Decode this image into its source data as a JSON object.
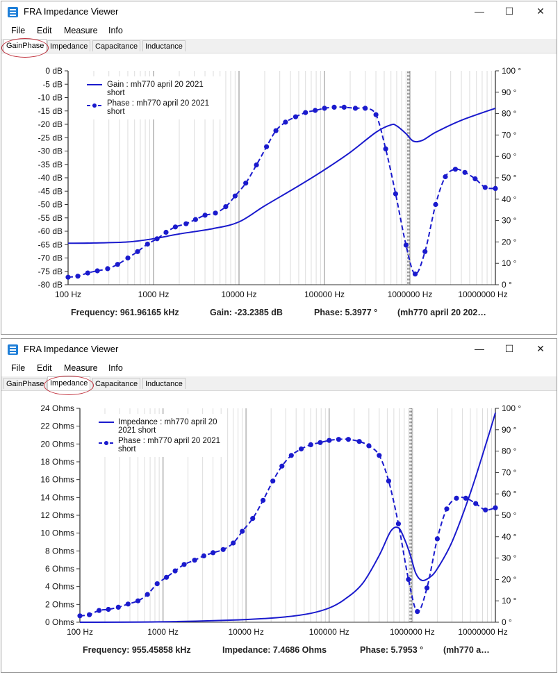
{
  "windows": [
    {
      "title": "FRA Impedance Viewer",
      "controls": {
        "minimize": "—",
        "maximize": "☐",
        "close": "✕"
      },
      "menu": [
        "File",
        "Edit",
        "Measure",
        "Info"
      ],
      "tabs": [
        "GainPhase",
        "Impedance",
        "Capacitance",
        "Inductance"
      ],
      "active_tab": 0,
      "readout": {
        "frequency": "Frequency: 961.96165 kHz",
        "value": "Gain: -23.2385 dB",
        "phase": "Phase: 5.3977 °",
        "series": "(mh770 april 20 202…"
      },
      "legend": {
        "line1": "Gain : mh770 april 20 2021",
        "line1b": "short",
        "line2": "Phase : mh770 april 20 2021",
        "line2b": "short"
      },
      "chart_data": {
        "type": "line",
        "x_scale": "log",
        "xlim": [
          100,
          10000000
        ],
        "x_ticks": [
          "100 Hz",
          "1000 Hz",
          "10000 Hz",
          "100000 Hz",
          "1000000 Hz",
          "10000000 Hz"
        ],
        "ylim_left": [
          -80,
          0
        ],
        "y_ticks_left": [
          "0 dB",
          "-5 dB",
          "-10 dB",
          "-15 dB",
          "-20 dB",
          "-25 dB",
          "-30 dB",
          "-35 dB",
          "-40 dB",
          "-45 dB",
          "-50 dB",
          "-55 dB",
          "-60 dB",
          "-65 dB",
          "-70 dB",
          "-75 dB",
          "-80 dB"
        ],
        "ylim_right": [
          0,
          100
        ],
        "y_ticks_right": [
          "100 °",
          "90 °",
          "80 °",
          "70 °",
          "60 °",
          "50 °",
          "40 °",
          "30 °",
          "20 °",
          "10 °",
          "0 °"
        ],
        "cursor_x": 961962,
        "series": [
          {
            "name": "Gain : mh770 april 20 2021 short",
            "axis": "left",
            "style": "solid",
            "x": [
              100,
              200,
              500,
              1000,
              2000,
              5000,
              10000,
              20000,
              50000,
              100000,
              200000,
              400000,
              600000,
              700000,
              900000,
              1100000,
              1400000,
              2000000,
              4000000,
              10000000
            ],
            "y": [
              -64.5,
              -64.4,
              -64,
              -62.8,
              -61,
              -59,
              -56.5,
              -50.5,
              -43,
              -37,
              -30.5,
              -23,
              -20.2,
              -20.6,
              -23.5,
              -26.3,
              -26,
              -23,
              -18.5,
              -14
            ]
          },
          {
            "name": "Phase : mh770 april 20 2021 short",
            "axis": "right",
            "style": "dashed-markers",
            "x": [
              100,
              130,
              170,
              220,
              290,
              380,
              500,
              650,
              850,
              1100,
              1400,
              1800,
              2400,
              3100,
              4000,
              5300,
              7000,
              9000,
              12000,
              16000,
              21000,
              27000,
              35000,
              46000,
              60000,
              78000,
              100000,
              130000,
              170000,
              230000,
              300000,
              400000,
              520000,
              680000,
              900000,
              1150000,
              1500000,
              2000000,
              2600000,
              3400000,
              4400000,
              5800000,
              7600000,
              10000000
            ],
            "y": [
              3.5,
              4,
              5.5,
              6.5,
              7.5,
              9.5,
              12.5,
              15.5,
              19,
              21.5,
              24.5,
              27,
              28.5,
              30.5,
              32.5,
              33.5,
              36.5,
              41.5,
              47.5,
              56,
              64.5,
              72,
              76,
              78.5,
              80.5,
              81.5,
              82.5,
              83,
              83,
              82.5,
              82.5,
              79.5,
              63.5,
              42.5,
              18.5,
              5,
              15.5,
              37.5,
              50.5,
              54,
              52.5,
              49.5,
              45.5,
              45
            ]
          }
        ]
      }
    },
    {
      "title": "FRA Impedance Viewer",
      "controls": {
        "minimize": "—",
        "maximize": "☐",
        "close": "✕"
      },
      "menu": [
        "File",
        "Edit",
        "Measure",
        "Info"
      ],
      "tabs": [
        "GainPhase",
        "Impedance",
        "Capacitance",
        "Inductance"
      ],
      "active_tab": 1,
      "readout": {
        "frequency": "Frequency: 955.45858 kHz",
        "value": "Impedance: 7.4686 Ohms",
        "phase": "Phase: 5.7953 °",
        "series": "(mh770 a…"
      },
      "legend": {
        "line1": "Impedance : mh770 april 20",
        "line1b": "2021 short",
        "line2": "Phase : mh770 april 20 2021",
        "line2b": "short"
      },
      "chart_data": {
        "type": "line",
        "x_scale": "log",
        "xlim": [
          100,
          10000000
        ],
        "x_ticks": [
          "100 Hz",
          "1000 Hz",
          "10000 Hz",
          "100000 Hz",
          "1000000 Hz",
          "10000000 Hz"
        ],
        "ylim_left": [
          0,
          24
        ],
        "y_ticks_left": [
          "24 Ohms",
          "22 Ohms",
          "20 Ohms",
          "18 Ohms",
          "16 Ohms",
          "14 Ohms",
          "12 Ohms",
          "10 Ohms",
          "8 Ohms",
          "6 Ohms",
          "4 Ohms",
          "2 Ohms",
          "0 Ohms"
        ],
        "ylim_right": [
          0,
          100
        ],
        "y_ticks_right": [
          "100 °",
          "90 °",
          "80 °",
          "70 °",
          "60 °",
          "50 °",
          "40 °",
          "30 °",
          "20 °",
          "10 °",
          "0 °"
        ],
        "cursor_x": 955459,
        "series": [
          {
            "name": "Impedance : mh770 april 20 2021 short",
            "axis": "left",
            "style": "solid",
            "x": [
              100,
              1000,
              10000,
              30000,
              60000,
              100000,
              150000,
              250000,
              400000,
              550000,
              680000,
              800000,
              950000,
              1100000,
              1300000,
              1600000,
              2000000,
              3000000,
              5000000,
              8000000,
              10000000
            ],
            "y": [
              0,
              0.05,
              0.3,
              0.6,
              1.0,
              1.6,
              2.5,
              4.3,
              7.5,
              10.2,
              10.6,
              9.4,
              7.5,
              5.5,
              4.7,
              5.0,
              6.0,
              9.0,
              14.5,
              20.5,
              23.5
            ]
          },
          {
            "name": "Phase : mh770 april 20 2021 short",
            "axis": "right",
            "style": "dashed-markers",
            "x": [
              100,
              130,
              170,
              220,
              290,
              380,
              500,
              650,
              850,
              1100,
              1400,
              1800,
              2400,
              3100,
              4000,
              5300,
              7000,
              9000,
              12000,
              16000,
              21000,
              27000,
              35000,
              46000,
              60000,
              78000,
              100000,
              130000,
              170000,
              230000,
              300000,
              400000,
              520000,
              680000,
              900000,
              1150000,
              1500000,
              2000000,
              2600000,
              3400000,
              4400000,
              5800000,
              7600000,
              10000000
            ],
            "y": [
              3,
              3.5,
              5.5,
              6,
              7,
              8.5,
              10,
              13,
              18,
              21,
              24,
              27,
              29,
              31,
              32.5,
              34,
              37,
              42.5,
              48.5,
              57,
              66,
              73,
              78,
              81,
              83,
              84,
              85,
              85.5,
              85.5,
              84.5,
              82.5,
              78,
              66,
              46,
              20,
              5,
              16,
              39,
              53,
              58,
              58,
              55.5,
              52.5,
              53.5
            ]
          }
        ]
      }
    }
  ]
}
